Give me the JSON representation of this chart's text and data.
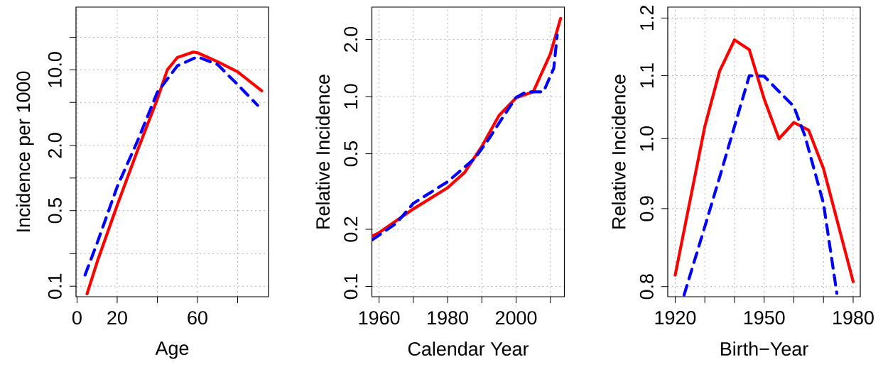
{
  "chart_data": [
    {
      "type": "line",
      "xlabel": "Age",
      "ylabel": "Incidence per 1000",
      "log": "y",
      "grid": true,
      "marker": "none",
      "xlim": [
        -0.5,
        95.4
      ],
      "ylim": [
        0.08,
        38
      ],
      "xticks": [
        0,
        20,
        {
          "value": 40,
          "label": null
        },
        60,
        {
          "value": 80,
          "label": null
        }
      ],
      "yticks": [
        0.1,
        {
          "value": 0.2,
          "label": null
        },
        0.5,
        {
          "value": 1,
          "label": null
        },
        {
          "value": 2,
          "label": "2.0"
        },
        {
          "value": 5,
          "label": null
        },
        {
          "value": 10,
          "label": "10.0"
        },
        {
          "value": 20,
          "label": null
        }
      ],
      "series": [
        {
          "color": "#ff0000",
          "line_style": "solid",
          "x": [
            5,
            10,
            20,
            30,
            35,
            40,
            45,
            50,
            58,
            60,
            70,
            80,
            92
          ],
          "values": [
            0.085,
            0.167,
            0.56,
            1.77,
            3.08,
            5.36,
            10,
            13,
            14.6,
            14.4,
            11.9,
            9.6,
            6.4
          ]
        },
        {
          "color": "#0000ff",
          "line_style": "dashed",
          "x": [
            4,
            10,
            20,
            30,
            40,
            50,
            60,
            70,
            80,
            90
          ],
          "values": [
            0.127,
            0.25,
            0.83,
            2.17,
            6.2,
            10.9,
            13.2,
            11.2,
            7.3,
            4.7
          ]
        }
      ]
    },
    {
      "type": "line",
      "xlabel": "Calendar Year",
      "ylabel": "Relative Incidence",
      "log": "y",
      "grid": true,
      "marker": "none",
      "xlim": [
        1957.9,
        2014.1
      ],
      "ylim": [
        0.0883,
        2.96
      ],
      "xticks": [
        1960,
        {
          "value": 1970,
          "label": null
        },
        1980,
        {
          "value": 1990,
          "label": null
        },
        2000,
        {
          "value": 2010,
          "label": null
        }
      ],
      "yticks": [
        0.1,
        0.2,
        0.5,
        {
          "value": 1,
          "label": "1.0"
        },
        {
          "value": 2,
          "label": "2.0"
        }
      ],
      "series": [
        {
          "color": "#ff0000",
          "line_style": "solid",
          "x": [
            1958,
            1960,
            1970,
            1980,
            1985,
            1990,
            1995,
            2000,
            2005,
            2010,
            2013
          ],
          "values": [
            0.184,
            0.192,
            0.256,
            0.331,
            0.399,
            0.547,
            0.795,
            0.986,
            1.06,
            1.68,
            2.58
          ]
        },
        {
          "color": "#0000ff",
          "line_style": "dashed",
          "x": [
            1958,
            1965,
            1970,
            1980,
            1988,
            1992,
            1996,
            2000,
            2003,
            2008,
            2011,
            2012
          ],
          "values": [
            0.176,
            0.215,
            0.274,
            0.356,
            0.474,
            0.597,
            0.772,
            0.99,
            1.06,
            1.06,
            1.41,
            2.11
          ]
        }
      ]
    },
    {
      "type": "line",
      "xlabel": "Birth−Year",
      "ylabel": "Relative Incidence",
      "log": "y",
      "grid": true,
      "marker": "none",
      "xlim": [
        1917.5,
        1982.4
      ],
      "ylim": [
        0.788,
        1.22
      ],
      "xticks": [
        1920,
        {
          "value": 1930,
          "label": null
        },
        {
          "value": 1940,
          "label": null
        },
        1950,
        {
          "value": 1960,
          "label": null
        },
        {
          "value": 1970,
          "label": null
        },
        1980
      ],
      "yticks": [
        0.8,
        0.9,
        {
          "value": 1,
          "label": "1.0"
        },
        1.1,
        1.2
      ],
      "series": [
        {
          "color": "#ff0000",
          "line_style": "solid",
          "x": [
            1920,
            1930,
            1935,
            1940,
            1945,
            1950,
            1955,
            1960,
            1965,
            1970,
            1980
          ],
          "values": [
            0.814,
            1.019,
            1.108,
            1.161,
            1.144,
            1.062,
            1.0,
            1.025,
            1.013,
            0.956,
            0.806
          ]
        },
        {
          "color": "#0000ff",
          "line_style": "dashed",
          "x": [
            1923,
            1930,
            1935,
            1940,
            1945,
            1950,
            1955,
            1960,
            1963.7,
            1970,
            1974.5
          ],
          "values": [
            0.79,
            0.876,
            0.944,
            1.019,
            1.1,
            1.099,
            1.074,
            1.05,
            1.005,
            0.907,
            0.792
          ]
        }
      ]
    }
  ]
}
